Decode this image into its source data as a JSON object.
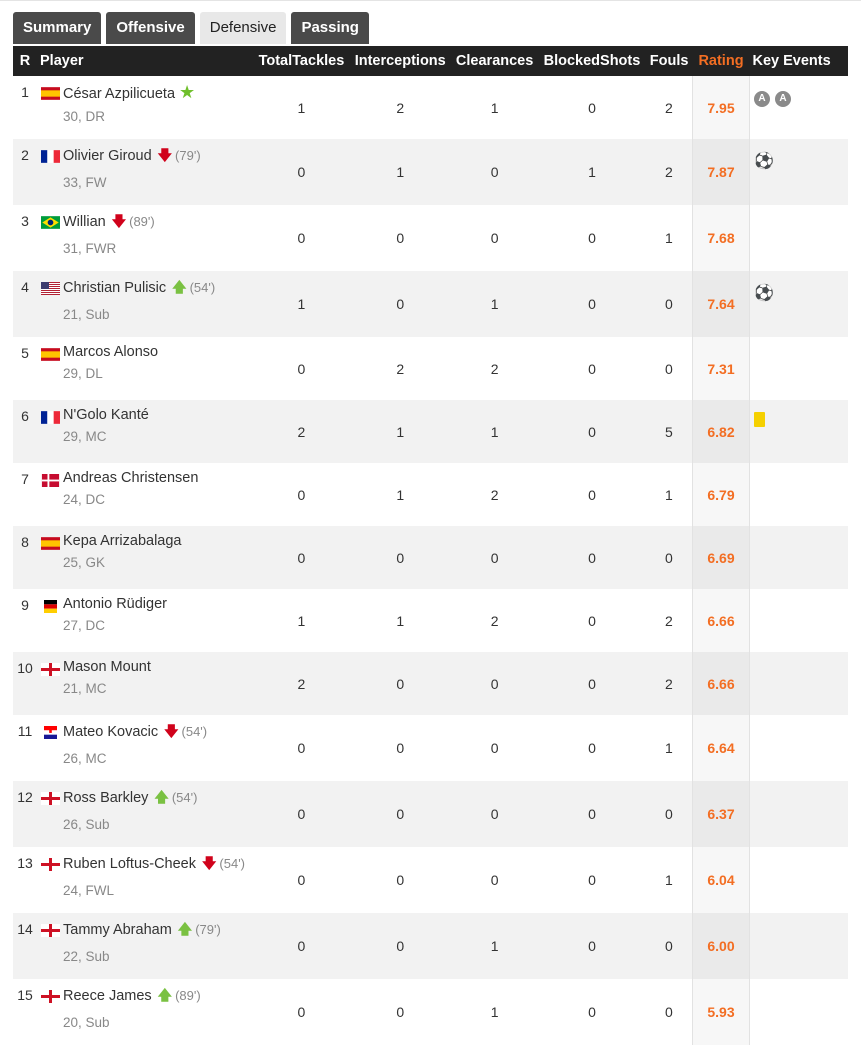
{
  "tabs": [
    {
      "label": "Summary",
      "active": false
    },
    {
      "label": "Offensive",
      "active": false
    },
    {
      "label": "Defensive",
      "active": true
    },
    {
      "label": "Passing",
      "active": false
    }
  ],
  "columns": [
    "R",
    "Player",
    "TotalTackles",
    "Interceptions",
    "Clearances",
    "BlockedShots",
    "Fouls",
    "Rating",
    "Key Events"
  ],
  "colors": {
    "rating": "#f36e23",
    "header_bg": "#222222",
    "sub_off": "#d0021b",
    "sub_on": "#7ac142"
  },
  "players": [
    {
      "r": "1",
      "flag": "spain",
      "name": "César Azpilicueta",
      "motm": true,
      "sub": null,
      "minute": "",
      "meta": "30, DR",
      "stats": [
        "1",
        "2",
        "1",
        "0",
        "2"
      ],
      "rating": "7.95",
      "events": [
        "assist",
        "assist"
      ]
    },
    {
      "r": "2",
      "flag": "france",
      "name": "Olivier Giroud",
      "sub": "off",
      "minute": "(79')",
      "meta": "33, FW",
      "stats": [
        "0",
        "1",
        "0",
        "1",
        "2"
      ],
      "rating": "7.87",
      "events": [
        "goal"
      ]
    },
    {
      "r": "3",
      "flag": "brazil",
      "name": "Willian",
      "sub": "off",
      "minute": "(89')",
      "meta": "31, FWR",
      "stats": [
        "0",
        "0",
        "0",
        "0",
        "1"
      ],
      "rating": "7.68",
      "events": []
    },
    {
      "r": "4",
      "flag": "usa",
      "name": "Christian Pulisic",
      "sub": "on",
      "minute": "(54')",
      "meta": "21, Sub",
      "stats": [
        "1",
        "0",
        "1",
        "0",
        "0"
      ],
      "rating": "7.64",
      "events": [
        "goal"
      ]
    },
    {
      "r": "5",
      "flag": "spain",
      "name": "Marcos Alonso",
      "sub": null,
      "minute": "",
      "meta": "29, DL",
      "stats": [
        "0",
        "2",
        "2",
        "0",
        "0"
      ],
      "rating": "7.31",
      "events": []
    },
    {
      "r": "6",
      "flag": "france",
      "name": "N'Golo Kanté",
      "sub": null,
      "minute": "",
      "meta": "29, MC",
      "stats": [
        "2",
        "1",
        "1",
        "0",
        "5"
      ],
      "rating": "6.82",
      "events": [
        "yellow-card"
      ]
    },
    {
      "r": "7",
      "flag": "denmark",
      "name": "Andreas Christensen",
      "sub": null,
      "minute": "",
      "meta": "24, DC",
      "stats": [
        "0",
        "1",
        "2",
        "0",
        "1"
      ],
      "rating": "6.79",
      "events": []
    },
    {
      "r": "8",
      "flag": "spain",
      "name": "Kepa Arrizabalaga",
      "sub": null,
      "minute": "",
      "meta": "25, GK",
      "stats": [
        "0",
        "0",
        "0",
        "0",
        "0"
      ],
      "rating": "6.69",
      "events": []
    },
    {
      "r": "9",
      "flag": "germany",
      "name": "Antonio Rüdiger",
      "sub": null,
      "minute": "",
      "meta": "27, DC",
      "stats": [
        "1",
        "1",
        "2",
        "0",
        "2"
      ],
      "rating": "6.66",
      "events": []
    },
    {
      "r": "10",
      "flag": "england",
      "name": "Mason Mount",
      "sub": null,
      "minute": "",
      "meta": "21, MC",
      "stats": [
        "2",
        "0",
        "0",
        "0",
        "2"
      ],
      "rating": "6.66",
      "events": []
    },
    {
      "r": "11",
      "flag": "croatia",
      "name": "Mateo Kovacic",
      "sub": "off",
      "minute": "(54')",
      "meta": "26, MC",
      "stats": [
        "0",
        "0",
        "0",
        "0",
        "1"
      ],
      "rating": "6.64",
      "events": []
    },
    {
      "r": "12",
      "flag": "england",
      "name": "Ross Barkley",
      "sub": "on",
      "minute": "(54')",
      "meta": "26, Sub",
      "stats": [
        "0",
        "0",
        "0",
        "0",
        "0"
      ],
      "rating": "6.37",
      "events": []
    },
    {
      "r": "13",
      "flag": "england",
      "name": "Ruben Loftus-Cheek",
      "sub": "off",
      "minute": "(54')",
      "meta": "24, FWL",
      "stats": [
        "0",
        "0",
        "0",
        "0",
        "1"
      ],
      "rating": "6.04",
      "events": []
    },
    {
      "r": "14",
      "flag": "england",
      "name": "Tammy Abraham",
      "sub": "on",
      "minute": "(79')",
      "meta": "22, Sub",
      "stats": [
        "0",
        "0",
        "1",
        "0",
        "0"
      ],
      "rating": "6.00",
      "events": []
    },
    {
      "r": "15",
      "flag": "england",
      "name": "Reece James",
      "sub": "on",
      "minute": "(89')",
      "meta": "20, Sub",
      "stats": [
        "0",
        "0",
        "1",
        "0",
        "0"
      ],
      "rating": "5.93",
      "events": []
    }
  ]
}
